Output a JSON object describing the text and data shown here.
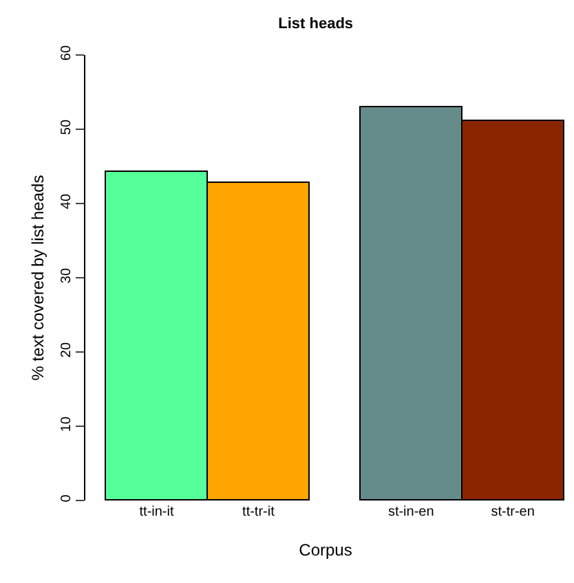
{
  "chart_data": {
    "type": "bar",
    "title": "List heads",
    "xlabel": "Corpus",
    "ylabel": "% text covered by list heads",
    "categories": [
      "tt-in-it",
      "tt-tr-it",
      "st-in-en",
      "st-tr-en"
    ],
    "values": [
      44.3,
      42.8,
      53.0,
      51.2
    ],
    "colors": [
      "#55ff9a",
      "#ffa500",
      "#668b8b",
      "#8b2500"
    ],
    "ylim": [
      0,
      60
    ],
    "yticks": [
      0,
      10,
      20,
      30,
      40,
      50,
      60
    ]
  }
}
